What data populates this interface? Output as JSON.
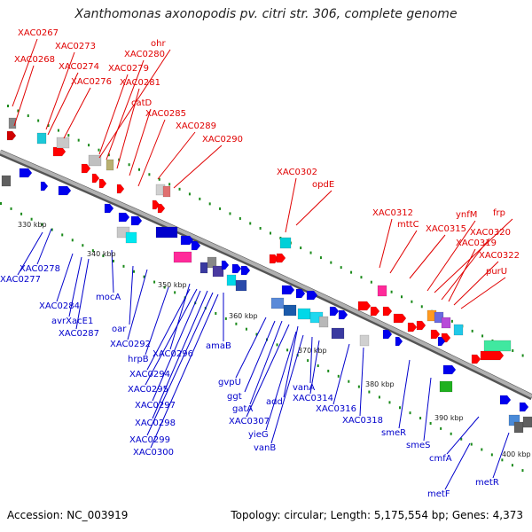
{
  "title": "Xanthomonas axonopodis pv. citri str. 306, complete genome",
  "footer": {
    "accession": "Accession: NC_003919",
    "summary": "Topology: circular; Length: 5,175,554 bp; Genes: 4,373"
  },
  "colors": {
    "forward_label": "#e00000",
    "reverse_label": "#0000cc",
    "backbone": "#8a8a8a",
    "tick": "#1a8a1a"
  },
  "scale_labels": [
    "330 kbp",
    "340 kbp",
    "350 kbp",
    "360 kbp",
    "370 kbp",
    "380 kbp",
    "390 kbp",
    "400 kbp"
  ],
  "forward_labels": [
    "XAC0267",
    "XAC0268",
    "XAC0273",
    "XAC0274",
    "XAC0276",
    "XAC0279",
    "ohr",
    "XAC0280",
    "XAC0281",
    "catD",
    "XAC0285",
    "XAC0289",
    "XAC0290",
    "XAC0302",
    "opdE",
    "XAC0312",
    "mttC",
    "XAC0315",
    "ynfM",
    "frp",
    "XAC0320",
    "XAC0319",
    "XAC0322",
    "purU"
  ],
  "reverse_labels": [
    "XAC0278",
    "XAC0277",
    "XAC0284",
    "avrXacE1",
    "XAC0287",
    "mocA",
    "oar",
    "XAC0292",
    "hrpB",
    "XAC0296",
    "amaB",
    "XAC0294",
    "XAC0295",
    "XAC0297",
    "XAC0298",
    "XAC0299",
    "XAC0300",
    "gvpU",
    "ggt",
    "gatA",
    "add",
    "XAC0307",
    "yieG",
    "vanB",
    "vanA",
    "XAC0314",
    "XAC0316",
    "XAC0318",
    "smeR",
    "smeS",
    "cmfA",
    "metF",
    "metR"
  ]
}
